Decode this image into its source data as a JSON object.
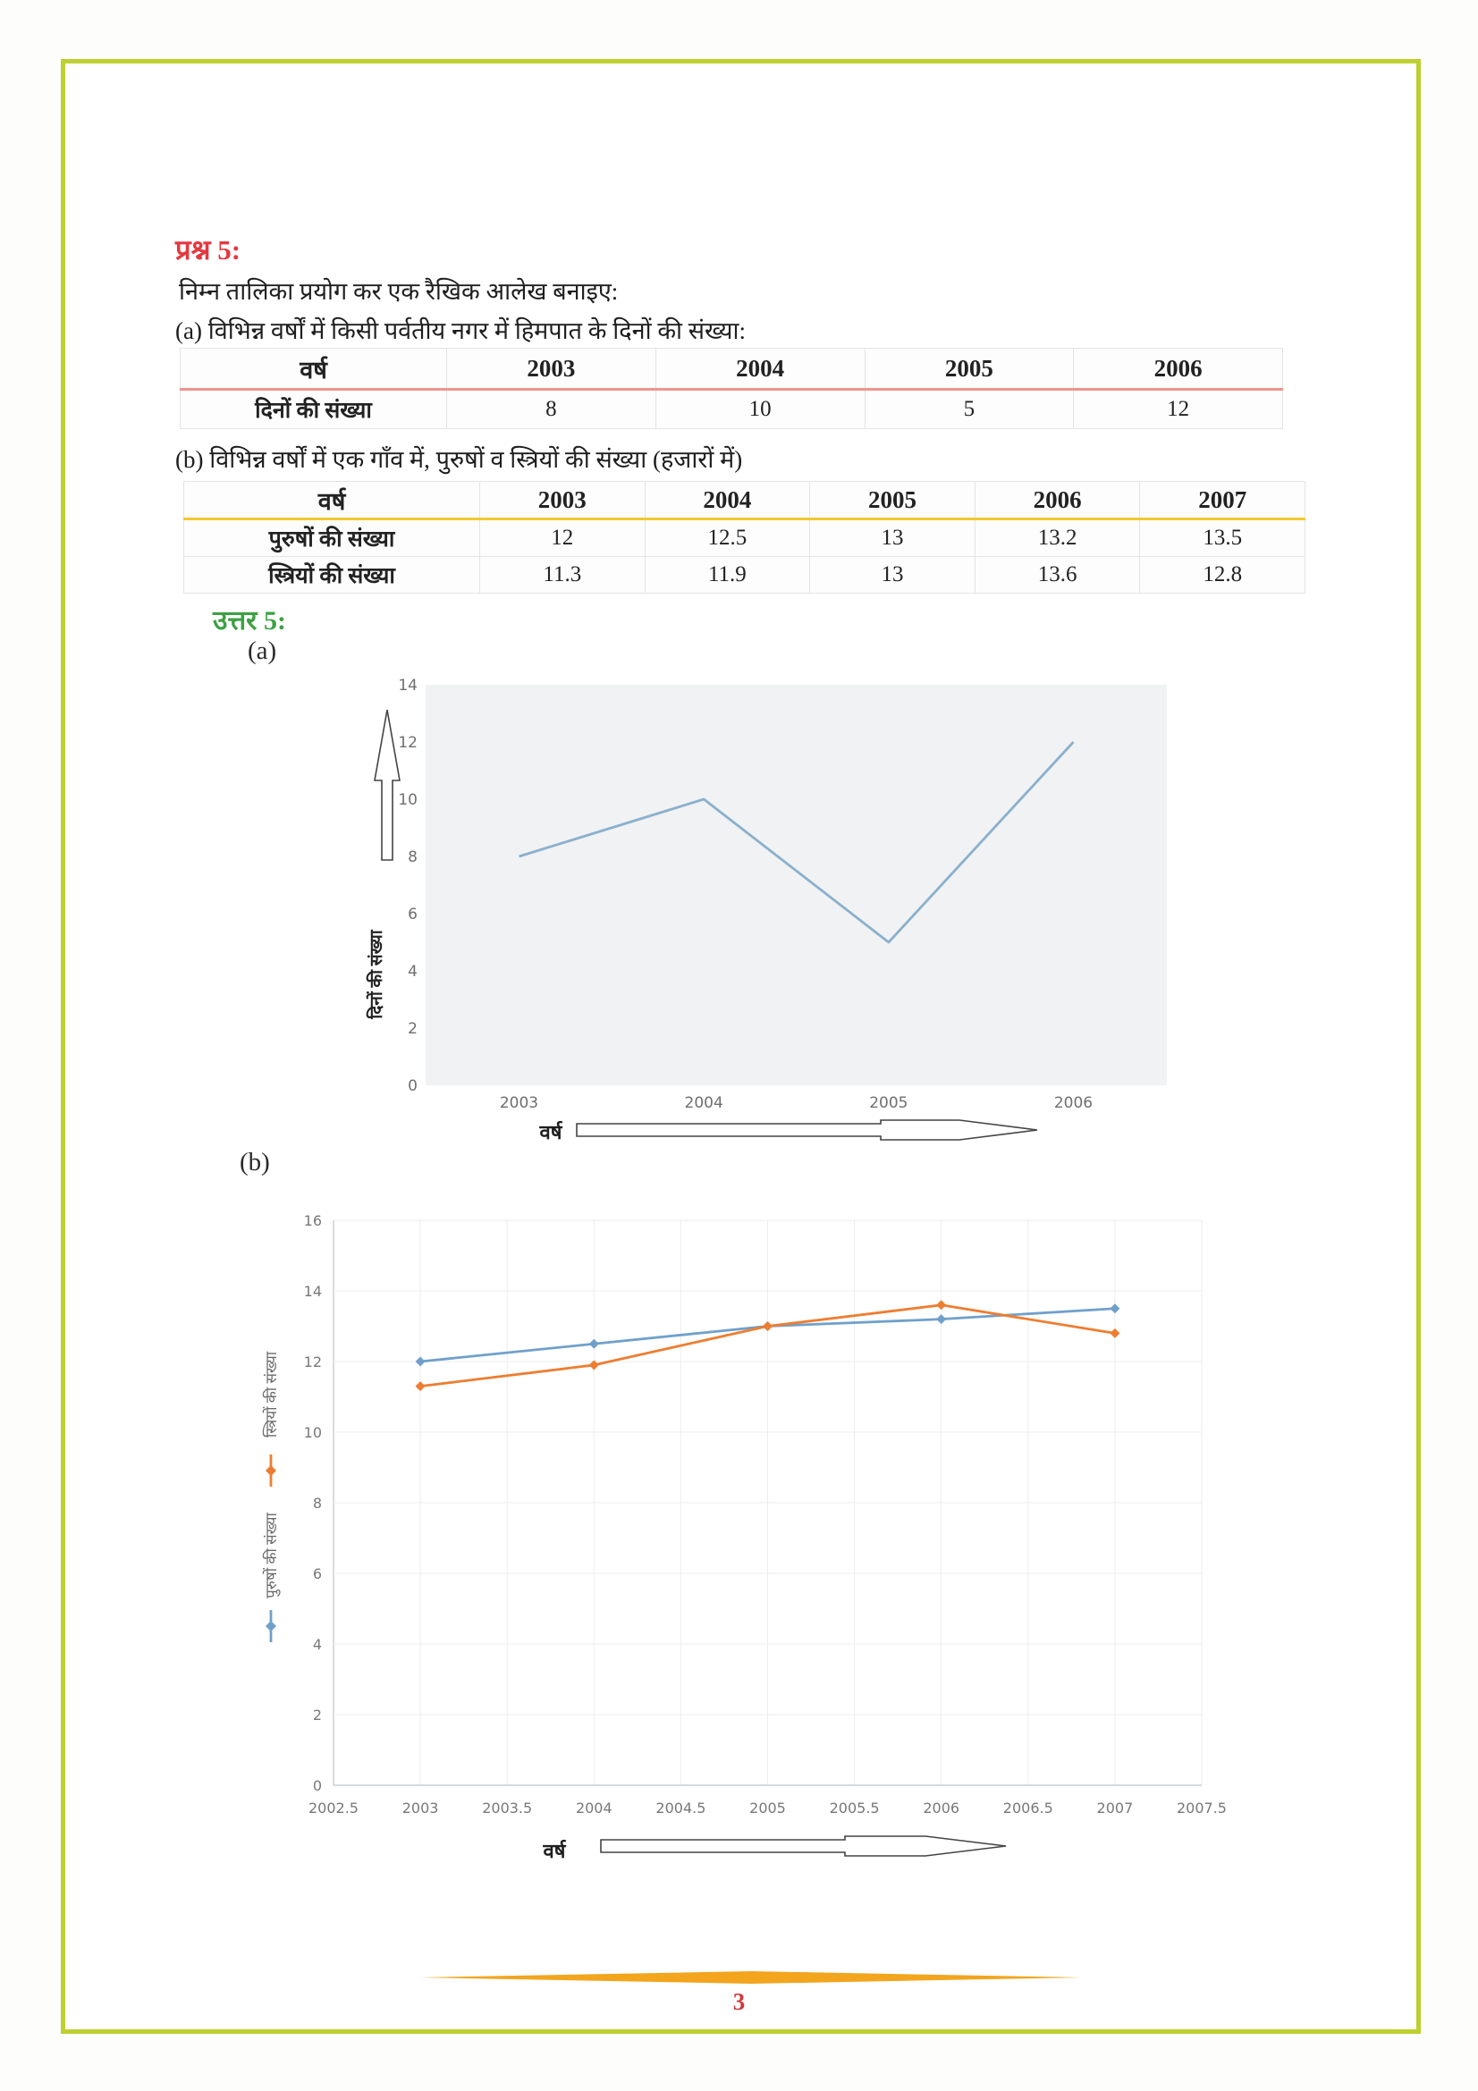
{
  "question": {
    "label": "प्रश्न 5:",
    "intro": "निम्न तालिका प्रयोग कर एक रैखिक आलेख बनाइए:",
    "part_a_text": "(a) विभिन्न वर्षों में किसी पर्वतीय नगर में हिमपात के दिनों की संख्या:",
    "part_b_text": "(b) विभिन्न वर्षों में एक गाँव में, पुरुषों व स्त्रियों की संख्या (हजारों में)"
  },
  "table_a": {
    "header": [
      "वर्ष",
      "2003",
      "2004",
      "2005",
      "2006"
    ],
    "rows": [
      [
        "दिनों की संख्या",
        "8",
        "10",
        "5",
        "12"
      ]
    ]
  },
  "table_b": {
    "header": [
      "वर्ष",
      "2003",
      "2004",
      "2005",
      "2006",
      "2007"
    ],
    "rows": [
      [
        "पुरुषों की संख्या",
        "12",
        "12.5",
        "13",
        "13.2",
        "13.5"
      ],
      [
        "स्त्रियों की संख्या",
        "11.3",
        "11.9",
        "13",
        "13.6",
        "12.8"
      ]
    ]
  },
  "answer": {
    "label": "उत्तर 5:",
    "part_a_label": "(a)",
    "part_b_label": "(b)"
  },
  "chart_data": [
    {
      "type": "line",
      "categories": [
        "2003",
        "2004",
        "2005",
        "2006"
      ],
      "values": [
        8,
        10,
        5,
        12
      ],
      "title": "",
      "xlabel": "वर्ष",
      "ylabel": "दिनों की संख्या",
      "ylim": [
        0,
        14
      ],
      "ytick_step": 2,
      "grid": false,
      "line_color": "#8ab0cd",
      "panel_bg": "#f1f2f3",
      "legend_position": "none"
    },
    {
      "type": "line",
      "x": [
        2003,
        2004,
        2005,
        2006,
        2007
      ],
      "series": [
        {
          "name": "पुरुषों की संख्या",
          "values": [
            12,
            12.5,
            13,
            13.2,
            13.5
          ],
          "color": "#70a0ca"
        },
        {
          "name": "स्त्रियों की संख्या",
          "values": [
            11.3,
            11.9,
            13,
            13.6,
            12.8
          ],
          "color": "#ee7d31"
        }
      ],
      "title": "",
      "xlabel": "वर्ष",
      "ylabel": "",
      "xlim": [
        2002.5,
        2007.5
      ],
      "xtick_step": 0.5,
      "ylim": [
        0,
        16
      ],
      "ytick_step": 2,
      "grid": true,
      "marker": "diamond",
      "legend_position": "left-rotated"
    }
  ],
  "footer": {
    "page_number": "3",
    "divider_color": "#f2a51d"
  }
}
